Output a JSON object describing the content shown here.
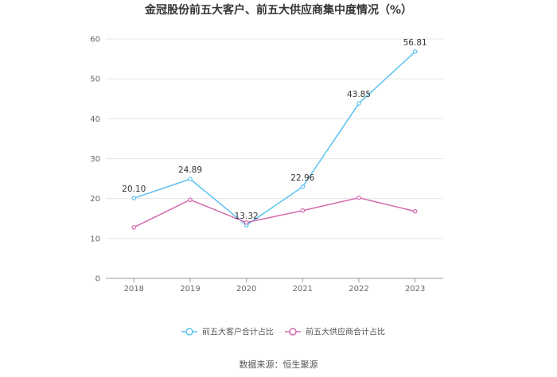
{
  "chart_data": {
    "type": "line",
    "title": "金冠股份前五大客户、前五大供应商集中度情况（%）",
    "x": [
      "2018",
      "2019",
      "2020",
      "2021",
      "2022",
      "2023"
    ],
    "ylim": [
      0,
      60
    ],
    "yticks": [
      "0",
      "10",
      "20",
      "30",
      "40",
      "50",
      "60"
    ],
    "grid": true,
    "legend_position": "bottom",
    "series": [
      {
        "name": "前五大客户合计占比",
        "color": "#5bc2f0",
        "values": [
          20.1,
          24.89,
          13.32,
          22.96,
          43.85,
          56.81
        ],
        "labels": [
          "20.10",
          "24.89",
          "13.32",
          "22.96",
          "43.85",
          "56.81"
        ]
      },
      {
        "name": "前五大供应商合计占比",
        "color": "#d36aaf",
        "values": [
          12.8,
          19.7,
          14.0,
          17.0,
          20.2,
          16.8
        ]
      }
    ],
    "source": "数据来源：恒生聚源"
  }
}
